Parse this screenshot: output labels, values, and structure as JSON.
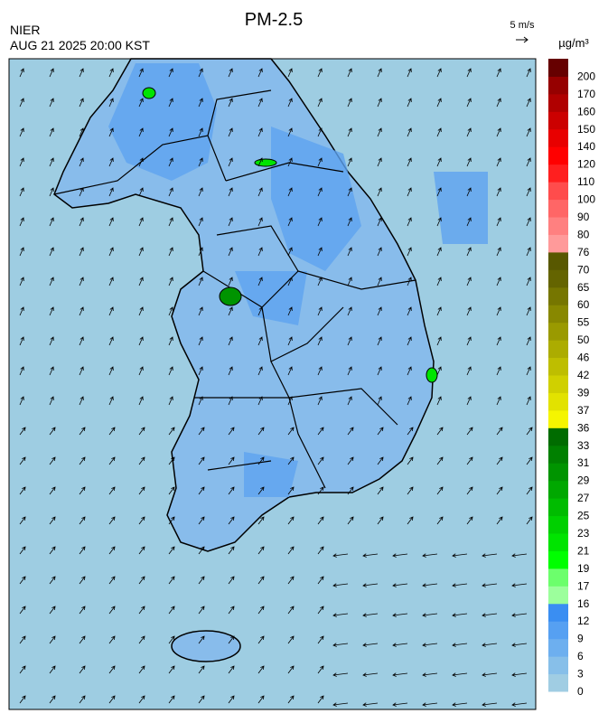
{
  "header": {
    "title": "PM-2.5",
    "source": "NIER",
    "datetime": "AUG 21 2025 20:00 KST"
  },
  "wind_scale": {
    "label": "5 m/s"
  },
  "colorbar": {
    "unit": "µg/m³",
    "ticks": [
      0,
      3,
      6,
      9,
      12,
      16,
      17,
      19,
      21,
      23,
      25,
      27,
      29,
      31,
      33,
      36,
      37,
      39,
      42,
      46,
      50,
      55,
      60,
      65,
      70,
      76,
      80,
      90,
      100,
      110,
      120,
      140,
      150,
      160,
      170,
      200
    ],
    "colors": [
      "#a0cde3",
      "#87bfe9",
      "#6dafef",
      "#56a0f2",
      "#3a8ef2",
      "#9cff9c",
      "#6cff6c",
      "#00ff00",
      "#00e400",
      "#00d000",
      "#00bc00",
      "#00a800",
      "#009400",
      "#008000",
      "#006c00",
      "#f5f500",
      "#e2e200",
      "#d0d000",
      "#bebe00",
      "#acac00",
      "#9a9a00",
      "#888800",
      "#767600",
      "#646400",
      "#585800",
      "#ff9a9a",
      "#ff8080",
      "#ff6666",
      "#ff4c4c",
      "#ff1f1f",
      "#ff0000",
      "#e80000",
      "#cc0000",
      "#b00000",
      "#960000",
      "#660000"
    ]
  }
}
